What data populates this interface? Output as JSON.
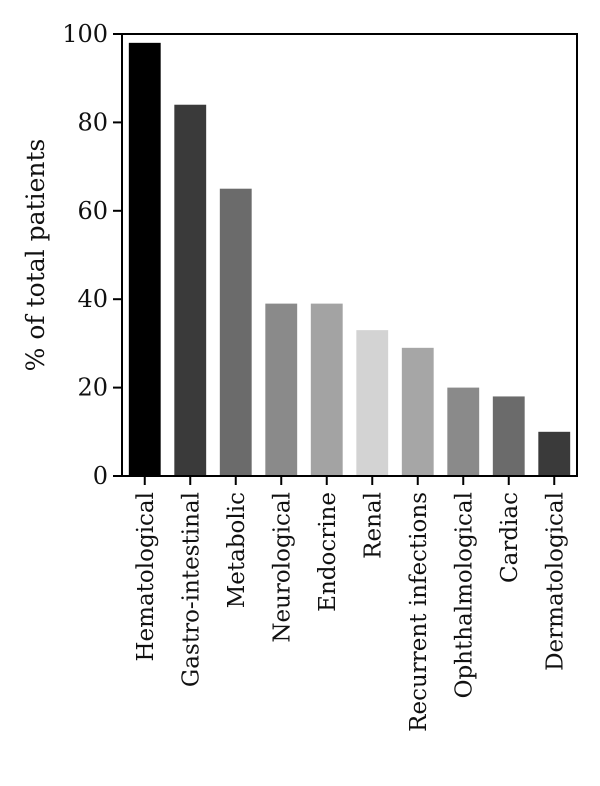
{
  "chart_data": {
    "type": "bar",
    "title": "",
    "xlabel": "",
    "ylabel": "% of total patients",
    "ylim": [
      0,
      100
    ],
    "yticks": [
      0,
      20,
      40,
      60,
      80,
      100
    ],
    "grid": false,
    "categories": [
      "Hematological",
      "Gastro-intestinal",
      "Metabolic",
      "Neurological",
      "Endocrine",
      "Renal",
      "Recurrent infections",
      "Ophthalmological",
      "Cardiac",
      "Dermatological"
    ],
    "values": [
      98,
      84,
      65,
      39,
      39,
      33,
      29,
      20,
      18,
      10
    ],
    "bar_colors": [
      "#000000",
      "#3a3a3a",
      "#6b6b6b",
      "#8a8a8a",
      "#a3a3a3",
      "#d3d3d3",
      "#a6a6a6",
      "#8a8a8a",
      "#6b6b6b",
      "#3a3a3a"
    ]
  }
}
